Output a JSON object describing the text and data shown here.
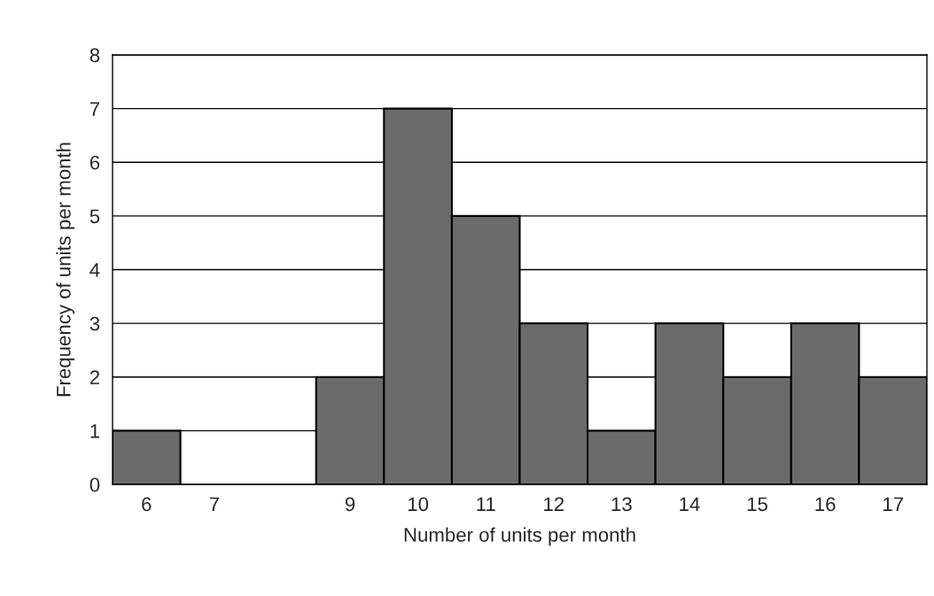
{
  "chart_data": {
    "type": "bar",
    "categories": [
      "6",
      "7",
      null,
      "9",
      "10",
      "11",
      "12",
      "13",
      "14",
      "15",
      "16",
      "17"
    ],
    "values": [
      1,
      0,
      0,
      2,
      7,
      5,
      3,
      1,
      3,
      2,
      3,
      2
    ],
    "color": "#6b6b6b",
    "xlabel": "Number of units per month",
    "ylabel": "Frequency of units per month",
    "ylim": [
      0,
      8
    ],
    "yticks": [
      0,
      1,
      2,
      3,
      4,
      5,
      6,
      7,
      8
    ],
    "grid": "y"
  }
}
